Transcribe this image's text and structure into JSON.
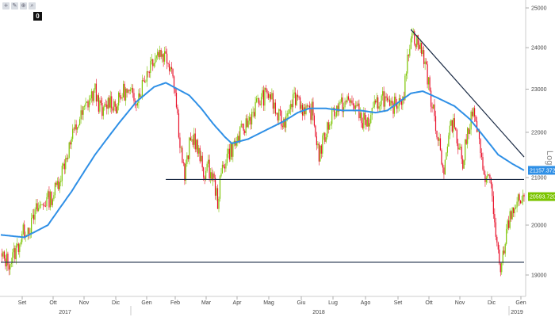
{
  "toolbar": {
    "tools": [
      {
        "name": "crosshair-icon",
        "glyph": "+"
      },
      {
        "name": "draw-icon",
        "glyph": "✎"
      },
      {
        "name": "zoom-in-icon",
        "glyph": "⊕"
      },
      {
        "name": "search-icon",
        "glyph": "⌕"
      }
    ],
    "badge": "0"
  },
  "chart_data": {
    "type": "candlestick",
    "scale": "log",
    "scale_label": "Log",
    "grid": false,
    "title": "",
    "xlabel": "",
    "ylabel": "",
    "ylim": [
      18800,
      25100
    ],
    "y_ticks": [
      {
        "value": 19000,
        "label": "19000"
      },
      {
        "value": 20000,
        "label": "20000"
      },
      {
        "value": 21000,
        "label": "21000"
      },
      {
        "value": 22000,
        "label": "22000"
      },
      {
        "value": 23000,
        "label": "23000"
      },
      {
        "value": 24000,
        "label": "24000"
      },
      {
        "value": 25000,
        "label": "25000"
      }
    ],
    "x_months": [
      "Set",
      "Ott",
      "Nov",
      "Dic",
      "Gen",
      "Feb",
      "Mar",
      "Apr",
      "Mag",
      "Giu",
      "Lug",
      "Ago",
      "Set",
      "Ott",
      "Nov",
      "Dic",
      "Gen"
    ],
    "x_years": [
      "2017",
      "2018",
      "2019"
    ],
    "last_price": {
      "value": 20593.72,
      "label": "20593.7207",
      "color": "#7cc400"
    },
    "moving_average_last": {
      "value": 21157.37,
      "label": "21157.3720",
      "color": "#2e8fe6"
    },
    "price_anchors": [
      [
        0,
        19350
      ],
      [
        8,
        19250
      ],
      [
        14,
        19550
      ],
      [
        20,
        19900
      ],
      [
        26,
        20000
      ],
      [
        30,
        20300
      ],
      [
        38,
        20500
      ],
      [
        44,
        20600
      ],
      [
        50,
        21000
      ],
      [
        56,
        21500
      ],
      [
        62,
        22000
      ],
      [
        68,
        22350
      ],
      [
        74,
        22700
      ],
      [
        80,
        22950
      ],
      [
        86,
        22400
      ],
      [
        92,
        22750
      ],
      [
        98,
        22600
      ],
      [
        104,
        22950
      ],
      [
        110,
        22850
      ],
      [
        116,
        22800
      ],
      [
        122,
        23250
      ],
      [
        128,
        23700
      ],
      [
        134,
        23900
      ],
      [
        140,
        23800
      ],
      [
        146,
        23450
      ],
      [
        152,
        21800
      ],
      [
        156,
        21000
      ],
      [
        160,
        21700
      ],
      [
        164,
        21900
      ],
      [
        168,
        21500
      ],
      [
        172,
        21100
      ],
      [
        176,
        21200
      ],
      [
        180,
        21000
      ],
      [
        184,
        20500
      ],
      [
        188,
        21200
      ],
      [
        192,
        21500
      ],
      [
        198,
        21700
      ],
      [
        204,
        22000
      ],
      [
        210,
        22250
      ],
      [
        216,
        22600
      ],
      [
        222,
        22800
      ],
      [
        228,
        22900
      ],
      [
        234,
        22400
      ],
      [
        240,
        22200
      ],
      [
        246,
        22750
      ],
      [
        252,
        22850
      ],
      [
        258,
        22400
      ],
      [
        264,
        22500
      ],
      [
        270,
        21500
      ],
      [
        276,
        22000
      ],
      [
        282,
        22500
      ],
      [
        288,
        22600
      ],
      [
        294,
        22700
      ],
      [
        300,
        22650
      ],
      [
        306,
        22300
      ],
      [
        312,
        22200
      ],
      [
        318,
        22600
      ],
      [
        324,
        22850
      ],
      [
        330,
        22500
      ],
      [
        336,
        22700
      ],
      [
        342,
        22900
      ],
      [
        348,
        24400
      ],
      [
        354,
        24100
      ],
      [
        360,
        23700
      ],
      [
        364,
        22900
      ],
      [
        368,
        22300
      ],
      [
        372,
        21800
      ],
      [
        376,
        21100
      ],
      [
        380,
        21900
      ],
      [
        384,
        22300
      ],
      [
        388,
        21800
      ],
      [
        392,
        21300
      ],
      [
        396,
        22000
      ],
      [
        400,
        22500
      ],
      [
        404,
        22100
      ],
      [
        408,
        21300
      ],
      [
        412,
        21000
      ],
      [
        416,
        20900
      ],
      [
        420,
        19700
      ],
      [
        424,
        19000
      ],
      [
        428,
        19700
      ],
      [
        432,
        20200
      ],
      [
        436,
        20400
      ],
      [
        440,
        20500
      ],
      [
        444,
        20593.72
      ]
    ],
    "moving_average_anchors": [
      [
        0,
        19800
      ],
      [
        20,
        19750
      ],
      [
        40,
        20000
      ],
      [
        60,
        20700
      ],
      [
        80,
        21500
      ],
      [
        100,
        22200
      ],
      [
        115,
        22700
      ],
      [
        130,
        23050
      ],
      [
        140,
        23150
      ],
      [
        150,
        23000
      ],
      [
        160,
        22850
      ],
      [
        170,
        22550
      ],
      [
        180,
        22200
      ],
      [
        190,
        21900
      ],
      [
        196,
        21750
      ],
      [
        210,
        21850
      ],
      [
        225,
        22050
      ],
      [
        240,
        22250
      ],
      [
        252,
        22450
      ],
      [
        262,
        22550
      ],
      [
        275,
        22550
      ],
      [
        290,
        22500
      ],
      [
        305,
        22500
      ],
      [
        318,
        22450
      ],
      [
        328,
        22500
      ],
      [
        338,
        22700
      ],
      [
        348,
        22900
      ],
      [
        358,
        22950
      ],
      [
        370,
        22800
      ],
      [
        385,
        22600
      ],
      [
        398,
        22300
      ],
      [
        410,
        21900
      ],
      [
        422,
        21500
      ],
      [
        434,
        21300
      ],
      [
        444,
        21157.37
      ]
    ],
    "annotations": [
      {
        "type": "horizontal",
        "value": 19250,
        "from": 0,
        "to": 444,
        "name": "support-line-lower"
      },
      {
        "type": "horizontal",
        "value": 20960,
        "from": 140,
        "to": 444,
        "name": "support-line-upper"
      },
      {
        "type": "trendline",
        "from": [
          348,
          24450
        ],
        "to": [
          444,
          21450
        ],
        "name": "downtrend-line"
      }
    ]
  }
}
